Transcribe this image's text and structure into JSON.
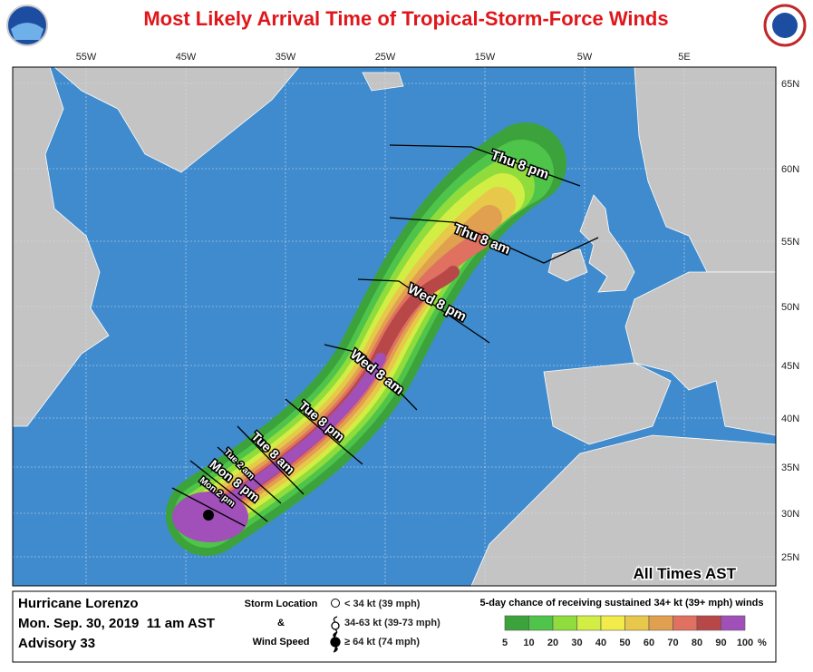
{
  "title": "Most Likely Arrival Time of Tropical-Storm-Force Winds",
  "lon_labels": [
    "55W",
    "45W",
    "35W",
    "25W",
    "15W",
    "5W",
    "5E"
  ],
  "lat_labels": [
    "65N",
    "60N",
    "55N",
    "50N",
    "45N",
    "40N",
    "35N",
    "30N",
    "25N"
  ],
  "arrival_labels": [
    "Thu 8 pm",
    "Thu 8 am",
    "Wed 8 pm",
    "Wed 8 am",
    "Tue 8 pm",
    "Tue 8 am",
    "Tue 2 am",
    "Mon 8 pm",
    "Mon 2 pm"
  ],
  "note": "All Times AST",
  "info": {
    "storm": "Hurricane Lorenzo",
    "date": "Mon. Sep. 30, 2019  11 am AST",
    "advisory": "Advisory 33"
  },
  "storm_legend": {
    "title": [
      "Storm Location",
      "&",
      "Wind Speed"
    ],
    "items": [
      "< 34 kt (39 mph)",
      "34-63 kt (39-73 mph)",
      "≥ 64 kt (74 mph)"
    ]
  },
  "probability_legend": {
    "title": "5-day chance of receiving sustained 34+ kt (39+ mph) winds",
    "ticks": [
      5,
      10,
      20,
      30,
      40,
      50,
      60,
      70,
      80,
      90,
      100
    ],
    "unit": "%",
    "colors": [
      "#3ca33c",
      "#4fc44a",
      "#8fdc3c",
      "#d2ee44",
      "#f2ec4a",
      "#e8c84a",
      "#e0a050",
      "#e07060",
      "#b84848",
      "#a050b8"
    ]
  }
}
